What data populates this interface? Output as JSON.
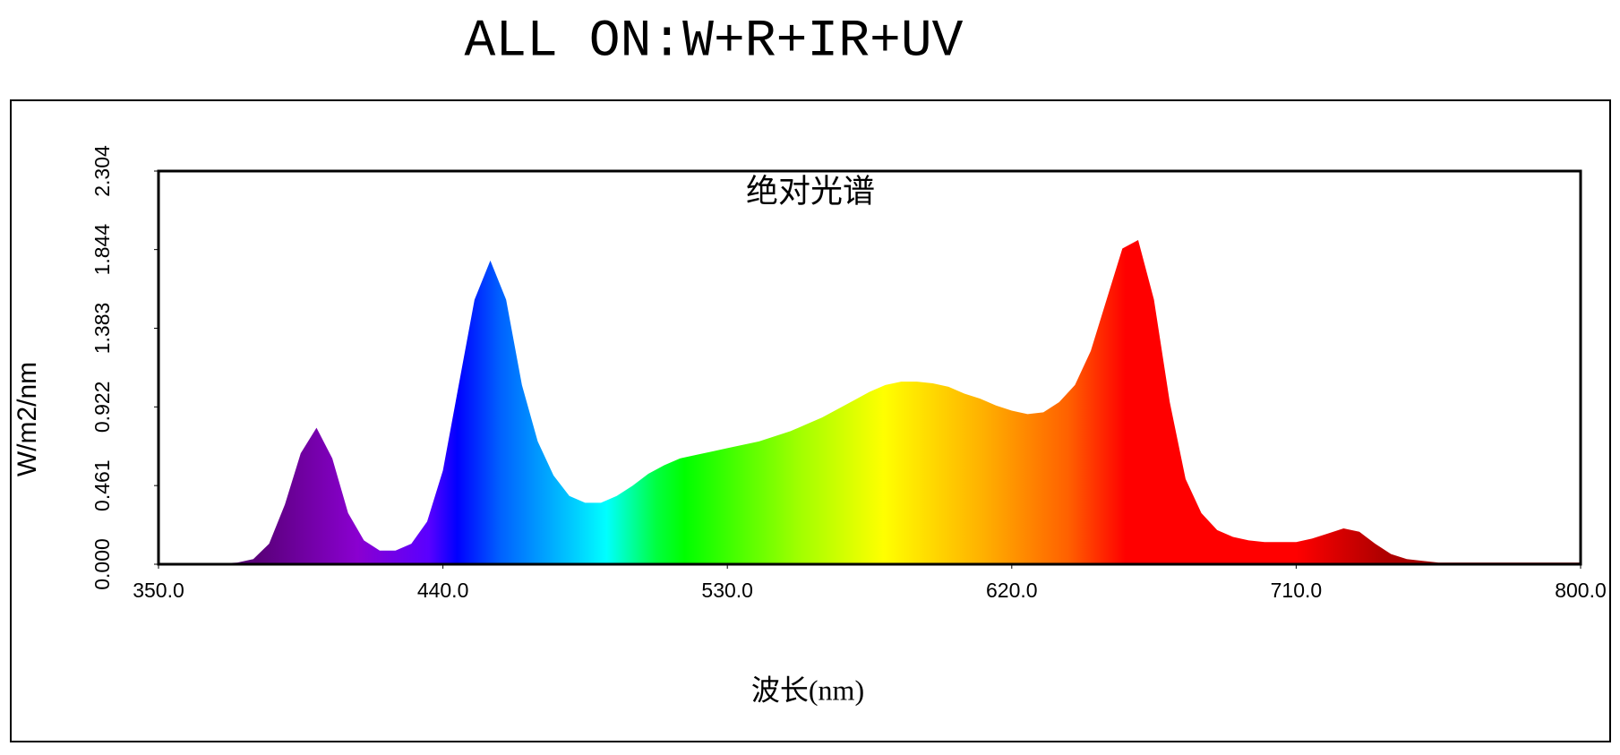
{
  "chart_data": {
    "type": "area",
    "page_title": "ALL ON:W+R+IR+UV",
    "title": "绝对光谱",
    "xlabel": "波长(nm)",
    "ylabel": "W/m2/nm",
    "xlim": [
      350,
      800
    ],
    "ylim": [
      0,
      2.304
    ],
    "xticks": [
      {
        "value": 350,
        "label": "350.0"
      },
      {
        "value": 440,
        "label": "440.0"
      },
      {
        "value": 530,
        "label": "530.0"
      },
      {
        "value": 620,
        "label": "620.0"
      },
      {
        "value": 710,
        "label": "710.0"
      },
      {
        "value": 800,
        "label": "800.0"
      }
    ],
    "yticks": [
      {
        "value": 0,
        "label": "0.000"
      },
      0.461,
      0.922,
      1.383,
      1.844,
      2.304
    ],
    "x": [
      350,
      355,
      360,
      365,
      370,
      375,
      380,
      385,
      390,
      395,
      400,
      405,
      410,
      415,
      420,
      425,
      430,
      435,
      440,
      445,
      450,
      455,
      460,
      465,
      470,
      475,
      480,
      485,
      490,
      495,
      500,
      505,
      510,
      515,
      520,
      525,
      530,
      535,
      540,
      545,
      550,
      555,
      560,
      565,
      570,
      575,
      580,
      585,
      590,
      595,
      600,
      605,
      610,
      615,
      620,
      625,
      630,
      635,
      640,
      645,
      650,
      655,
      660,
      665,
      670,
      675,
      680,
      685,
      690,
      695,
      700,
      705,
      710,
      715,
      720,
      725,
      730,
      735,
      740,
      745,
      750,
      755,
      760,
      765,
      770,
      775,
      780,
      785,
      790,
      795,
      800
    ],
    "values": [
      0.005,
      0.005,
      0.005,
      0.005,
      0.005,
      0.01,
      0.03,
      0.12,
      0.35,
      0.65,
      0.8,
      0.62,
      0.3,
      0.14,
      0.08,
      0.08,
      0.12,
      0.25,
      0.55,
      1.05,
      1.55,
      1.78,
      1.55,
      1.05,
      0.72,
      0.52,
      0.4,
      0.36,
      0.36,
      0.4,
      0.46,
      0.53,
      0.58,
      0.62,
      0.64,
      0.66,
      0.68,
      0.7,
      0.72,
      0.75,
      0.78,
      0.82,
      0.86,
      0.91,
      0.96,
      1.01,
      1.05,
      1.07,
      1.07,
      1.06,
      1.04,
      1.0,
      0.97,
      0.93,
      0.9,
      0.88,
      0.89,
      0.95,
      1.05,
      1.25,
      1.55,
      1.85,
      1.9,
      1.55,
      0.95,
      0.5,
      0.3,
      0.2,
      0.16,
      0.14,
      0.13,
      0.13,
      0.13,
      0.15,
      0.18,
      0.21,
      0.19,
      0.12,
      0.06,
      0.03,
      0.02,
      0.01,
      0.01,
      0.01,
      0.01,
      0.01,
      0.01,
      0.01,
      0.01,
      0.01,
      0.01
    ]
  }
}
